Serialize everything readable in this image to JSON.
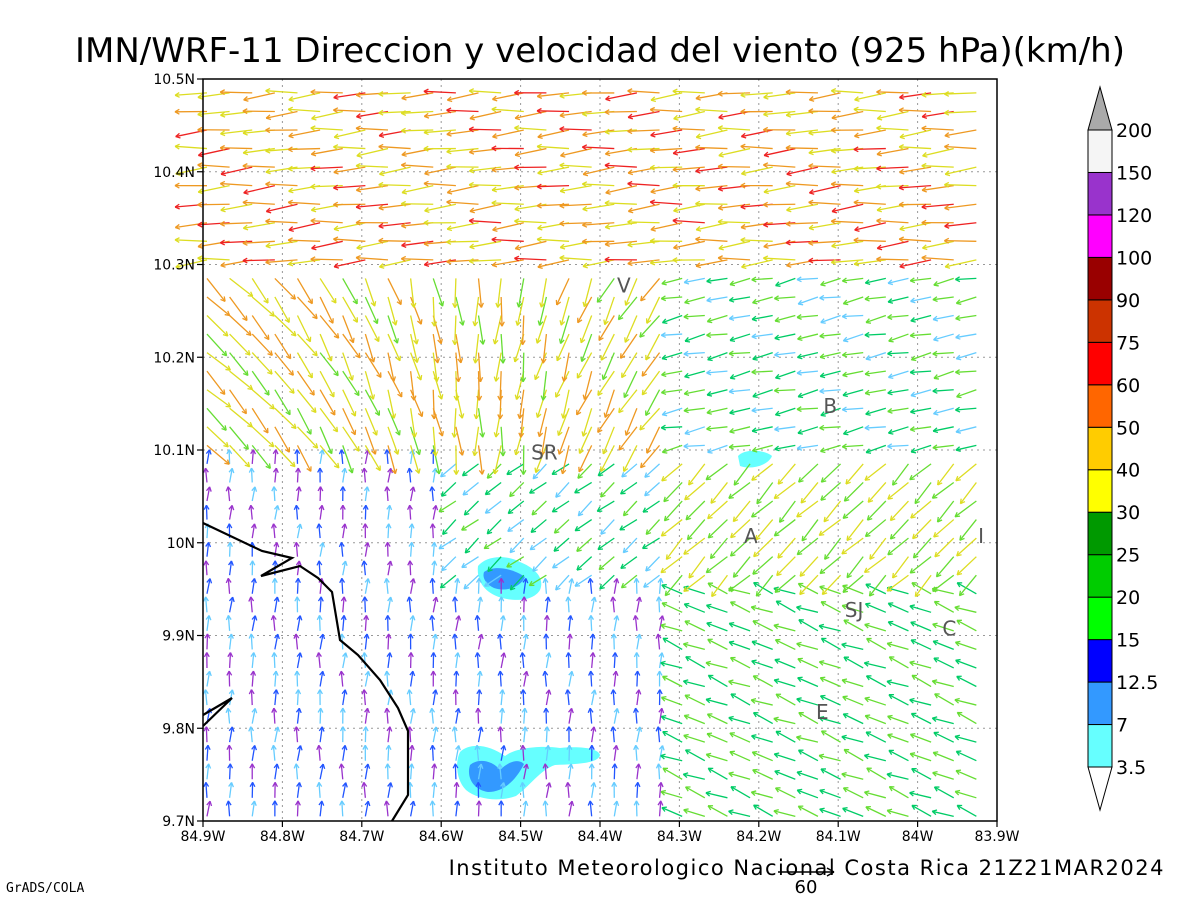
{
  "title": "IMN/WRF-11 Direccion y velocidad del viento (925 hPa)(km/h)",
  "footer": "Instituto Meteorologico Nacional Costa Rica 21Z21MAR2024",
  "software": "GrADS/COLA",
  "reference_vector": {
    "label": "60"
  },
  "axes": {
    "lon_ticks": [
      "84.9W",
      "84.8W",
      "84.7W",
      "84.6W",
      "84.5W",
      "84.4W",
      "84.3W",
      "84.2W",
      "84.1W",
      "84W",
      "83.9W"
    ],
    "lat_ticks": [
      "10.5N",
      "10.4N",
      "10.3N",
      "10.2N",
      "10.1N",
      "10N",
      "9.9N",
      "9.8N",
      "9.7N"
    ],
    "lon_range": [
      -84.9,
      -83.9
    ],
    "lat_range": [
      9.7,
      10.5
    ],
    "grid": true
  },
  "places": [
    {
      "label": "V",
      "lon": -84.37,
      "lat": 10.27
    },
    {
      "label": "SR",
      "lon": -84.47,
      "lat": 10.09
    },
    {
      "label": "B",
      "lon": -84.11,
      "lat": 10.14
    },
    {
      "label": "A",
      "lon": -84.21,
      "lat": 10.0
    },
    {
      "label": "I",
      "lon": -83.92,
      "lat": 10.0
    },
    {
      "label": "SJ",
      "lon": -84.08,
      "lat": 9.92
    },
    {
      "label": "C",
      "lon": -83.96,
      "lat": 9.9
    },
    {
      "label": "E",
      "lon": -84.12,
      "lat": 9.81
    }
  ],
  "colorbar": {
    "labels": [
      "3.5",
      "7",
      "12.5",
      "15",
      "20",
      "25",
      "30",
      "40",
      "50",
      "60",
      "75",
      "90",
      "100",
      "120",
      "150",
      "200"
    ],
    "colors": [
      "#66ffff",
      "#3399ff",
      "#0000ff",
      "#00ff00",
      "#00cc00",
      "#009900",
      "#ffff00",
      "#ffcc00",
      "#ff6600",
      "#ff0000",
      "#cc3300",
      "#990000",
      "#ff00ff",
      "#9933cc",
      "#f5f5f5",
      "#aaaaaa"
    ]
  },
  "wind_colors": {
    "light": "#66ccff",
    "calm": "#9933cc",
    "weak": "#2255ff",
    "moderate": "#00cc66",
    "fresh": "#66dd33",
    "strong": "#dddd22",
    "very_strong": "#ee9922",
    "extreme": "#ee2222"
  },
  "coastline_color": "#000000"
}
